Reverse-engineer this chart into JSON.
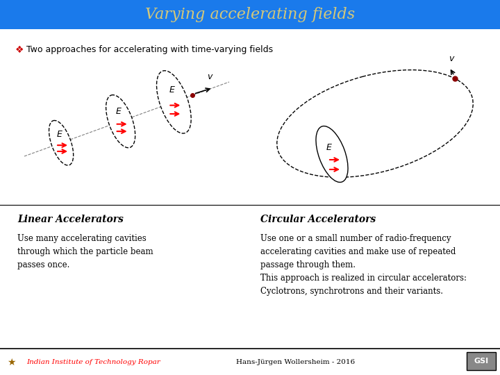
{
  "title": "Varying accelerating fields",
  "title_color": "#d4c87a",
  "title_bg_color": "#1a7aeb",
  "bullet_text": "Two approaches for accelerating with time-varying fields",
  "linear_heading": "Linear Accelerators",
  "linear_body": "Use many accelerating cavities\nthrough which the particle beam\npasses once.",
  "circular_heading": "Circular Accelerators",
  "circular_body": "Use one or a small number of radio-frequency\naccelerating cavities and make use of repeated\npassage through them.\nThis approach is realized in circular accelerators:\nCyclotrons, synchrotrons and their variants.",
  "footer_left": "Indian Institute of Technology Ropar",
  "footer_center": "Hans-Jürgen Wollersheim - 2016",
  "bg_color": "#ffffff",
  "text_color": "#000000",
  "red_color": "#cc0000"
}
